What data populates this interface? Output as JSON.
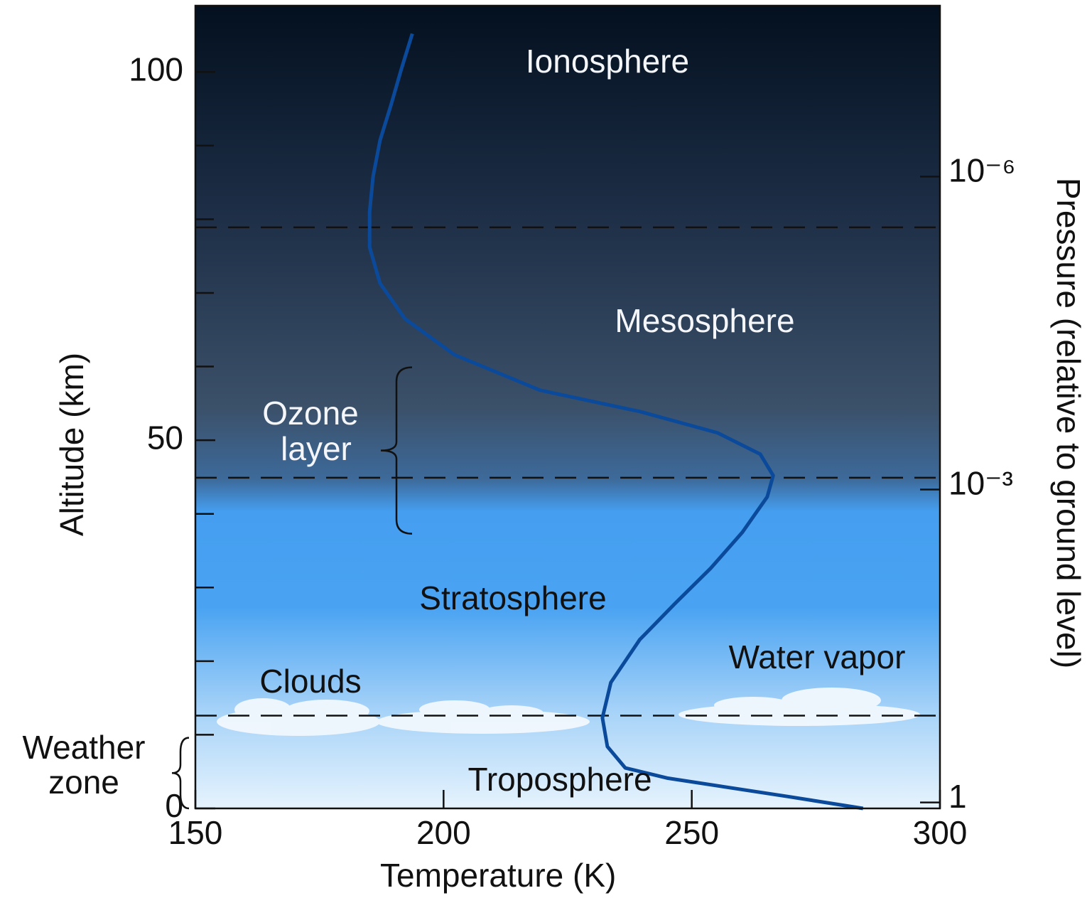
{
  "chart_data": {
    "type": "line",
    "x_label": "Temperature (K)",
    "y_label": "Altitude (km)",
    "y2_label": "Pressure (relative to ground level)",
    "xlim": [
      150,
      300
    ],
    "xticks": [
      150,
      200,
      250,
      300
    ],
    "ylim": [
      0,
      109
    ],
    "yticks": [
      0,
      50,
      100
    ],
    "yminorticks": [
      10,
      20,
      30,
      40,
      60,
      70,
      80,
      90
    ],
    "y2lim": [
      1.14,
      2.3e-08
    ],
    "y2scale": "log",
    "y2ticks": [
      {
        "value": 1e-06,
        "label": "10⁻⁶"
      },
      {
        "value": 0.001,
        "label": "10⁻³"
      },
      1
    ],
    "color": "#0b4a9a",
    "x": [
      284.5,
      269.5,
      245.2,
      236.6,
      233,
      232,
      233.7,
      239.5,
      246.6,
      253.8,
      260.2,
      265.2,
      266.4,
      263.8,
      255.2,
      239.5,
      219.4,
      202.2,
      192.2,
      187.2,
      185.1,
      185.1,
      185.8,
      187.2,
      189.4,
      191.5,
      193.7
    ],
    "values": [
      0,
      1.6,
      4.1,
      5.5,
      8.4,
      12.3,
      17.1,
      22.9,
      27.8,
      32.6,
      37.5,
      42.3,
      45.2,
      48.1,
      51,
      53.9,
      56.8,
      61.6,
      66.5,
      71.3,
      76.2,
      81,
      85.8,
      90.7,
      95.5,
      100.4,
      105.2
    ],
    "boundaries": [
      12.6,
      44.9,
      78.9
    ],
    "regions": [
      "Ionosphere",
      "Mesosphere",
      "Stratosphere",
      "Troposphere"
    ],
    "clouds_label": "Clouds",
    "water_vapor_label": "Water vapor",
    "ozone_layer": {
      "label": [
        "Ozone",
        "layer"
      ],
      "range": [
        37.3,
        59.9
      ]
    },
    "weather_zone": {
      "label": [
        "Weather",
        "zone"
      ],
      "range": [
        0,
        9.6
      ]
    }
  }
}
